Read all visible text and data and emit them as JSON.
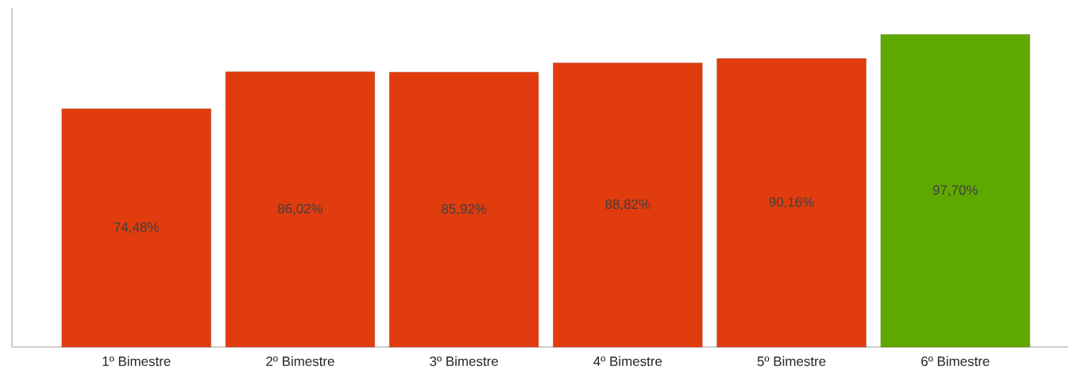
{
  "chart_data": {
    "type": "bar",
    "categories": [
      "1º Bimestre",
      "2º Bimestre",
      "3º Bimestre",
      "4º Bimestre",
      "5º Bimestre",
      "6º Bimestre"
    ],
    "values": [
      74.48,
      86.02,
      85.92,
      88.82,
      90.16,
      97.7
    ],
    "colors": [
      "#e03c0e",
      "#e03c0e",
      "#e03c0e",
      "#e03c0e",
      "#e03c0e",
      "#5fa800"
    ],
    "value_labels": [
      "74,48%",
      "86,02%",
      "85,92%",
      "88,82%",
      "90,16%",
      "97,70%"
    ]
  }
}
